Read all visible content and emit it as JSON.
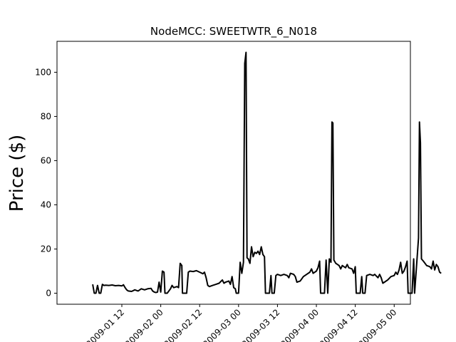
{
  "chart_data": {
    "type": "line",
    "title": "NodeMCC: SWEETWTR_6_N018",
    "xlabel": "",
    "ylabel": "Price ($)",
    "ylim": [
      -5,
      114
    ],
    "xlim_hours": [
      -8,
      101
    ],
    "y_ticks": [
      0,
      20,
      40,
      60,
      80,
      100
    ],
    "x_ticks": [
      {
        "label": "09-01 12",
        "hour": 12
      },
      {
        "label": "09-02 00",
        "hour": 24
      },
      {
        "label": "09-02 12",
        "hour": 36
      },
      {
        "label": "09-03 00",
        "hour": 48
      },
      {
        "label": "09-03 12",
        "hour": 60
      },
      {
        "label": "09-04 00",
        "hour": 72
      },
      {
        "label": "09-04 12",
        "hour": 84
      },
      {
        "label": "09-05 00",
        "hour": 96
      }
    ],
    "grid": false,
    "series": [
      {
        "color": "#000000",
        "points": [
          [
            3.0,
            4.0
          ],
          [
            3.5,
            0
          ],
          [
            4.0,
            0
          ],
          [
            4.5,
            3.5
          ],
          [
            5.0,
            0
          ],
          [
            5.5,
            0
          ],
          [
            6.0,
            4.0
          ],
          [
            6.5,
            3.5
          ],
          [
            7.0,
            3.6
          ],
          [
            8.0,
            3.5
          ],
          [
            9.0,
            3.7
          ],
          [
            10.0,
            3.4
          ],
          [
            11.0,
            3.5
          ],
          [
            12.0,
            3.3
          ],
          [
            12.5,
            3.8
          ],
          [
            13.0,
            2.5
          ],
          [
            13.5,
            1.5
          ],
          [
            14.0,
            1.0
          ],
          [
            15.0,
            0.8
          ],
          [
            16.0,
            1.5
          ],
          [
            17.0,
            1.0
          ],
          [
            18.0,
            2.0
          ],
          [
            19.0,
            1.5
          ],
          [
            20.0,
            2.0
          ],
          [
            21.0,
            2.2
          ],
          [
            21.5,
            1.0
          ],
          [
            22.0,
            0.5
          ],
          [
            22.5,
            0.3
          ],
          [
            23.0,
            0.5
          ],
          [
            23.5,
            5.0
          ],
          [
            24.0,
            0.5
          ],
          [
            24.5,
            10.0
          ],
          [
            25.0,
            9.5
          ],
          [
            25.3,
            0
          ],
          [
            26.0,
            0
          ],
          [
            27.0,
            2.0
          ],
          [
            27.5,
            3.5
          ],
          [
            28.0,
            2.5
          ],
          [
            29.0,
            3.0
          ],
          [
            29.5,
            2.5
          ],
          [
            30.0,
            13.5
          ],
          [
            30.5,
            12.5
          ],
          [
            30.7,
            0
          ],
          [
            32.0,
            0
          ],
          [
            32.5,
            9.5
          ],
          [
            33.0,
            10.0
          ],
          [
            34.0,
            9.8
          ],
          [
            35.0,
            10.2
          ],
          [
            36.0,
            9.5
          ],
          [
            37.0,
            8.8
          ],
          [
            37.5,
            9.5
          ],
          [
            38.0,
            7.0
          ],
          [
            38.5,
            3.5
          ],
          [
            39.0,
            3.0
          ],
          [
            40.0,
            3.5
          ],
          [
            41.0,
            4.0
          ],
          [
            42.0,
            4.5
          ],
          [
            43.0,
            6.0
          ],
          [
            43.5,
            4.5
          ],
          [
            44.0,
            5.0
          ],
          [
            45.0,
            5.5
          ],
          [
            45.5,
            4.0
          ],
          [
            46.0,
            7.5
          ],
          [
            46.5,
            2.5
          ],
          [
            47.0,
            2.0
          ],
          [
            47.3,
            0
          ],
          [
            48.0,
            0
          ],
          [
            48.5,
            14.0
          ],
          [
            49.0,
            9.0
          ],
          [
            49.5,
            14.0
          ],
          [
            49.9,
            104.0
          ],
          [
            50.3,
            109.0
          ],
          [
            50.6,
            16.0
          ],
          [
            51.0,
            15.5
          ],
          [
            51.5,
            13.5
          ],
          [
            52.0,
            21.0
          ],
          [
            52.5,
            16.5
          ],
          [
            53.0,
            18.5
          ],
          [
            53.5,
            18.0
          ],
          [
            54.0,
            19.0
          ],
          [
            54.5,
            17.5
          ],
          [
            55.0,
            21.0
          ],
          [
            55.5,
            17.5
          ],
          [
            56.0,
            16.5
          ],
          [
            56.3,
            0
          ],
          [
            57.5,
            0
          ],
          [
            58.0,
            8.0
          ],
          [
            58.3,
            0
          ],
          [
            59.0,
            0
          ],
          [
            59.5,
            8.0
          ],
          [
            60.0,
            8.5
          ],
          [
            61.0,
            8.0
          ],
          [
            62.0,
            8.5
          ],
          [
            63.0,
            8.0
          ],
          [
            63.5,
            7.0
          ],
          [
            64.0,
            9.0
          ],
          [
            65.0,
            8.5
          ],
          [
            65.5,
            7.5
          ],
          [
            66.0,
            5.0
          ],
          [
            67.0,
            5.5
          ],
          [
            68.0,
            7.5
          ],
          [
            69.0,
            8.5
          ],
          [
            70.0,
            9.5
          ],
          [
            70.5,
            11.0
          ],
          [
            71.0,
            9.0
          ],
          [
            72.0,
            10.0
          ],
          [
            72.5,
            11.5
          ],
          [
            73.0,
            14.5
          ],
          [
            73.3,
            0
          ],
          [
            74.5,
            0
          ],
          [
            75.0,
            15.0
          ],
          [
            75.5,
            0
          ],
          [
            76.0,
            15.5
          ],
          [
            76.5,
            14.0
          ],
          [
            76.8,
            77.5
          ],
          [
            77.1,
            77.0
          ],
          [
            77.4,
            15.0
          ],
          [
            78.0,
            13.5
          ],
          [
            79.0,
            12.5
          ],
          [
            79.5,
            11.0
          ],
          [
            80.0,
            12.5
          ],
          [
            81.0,
            11.5
          ],
          [
            81.5,
            13.0
          ],
          [
            82.0,
            11.5
          ],
          [
            83.0,
            11.0
          ],
          [
            83.5,
            9.0
          ],
          [
            84.0,
            12.0
          ],
          [
            84.3,
            0
          ],
          [
            85.5,
            0
          ],
          [
            86.0,
            7.5
          ],
          [
            86.3,
            0
          ],
          [
            87.0,
            0
          ],
          [
            87.5,
            8.0
          ],
          [
            88.5,
            8.5
          ],
          [
            89.5,
            8.0
          ],
          [
            90.0,
            8.5
          ],
          [
            91.0,
            7.0
          ],
          [
            91.5,
            8.5
          ],
          [
            92.0,
            7.0
          ],
          [
            92.5,
            4.5
          ],
          [
            93.0,
            5.0
          ],
          [
            94.0,
            6.0
          ],
          [
            95.0,
            7.5
          ],
          [
            96.0,
            8.0
          ],
          [
            96.5,
            9.5
          ],
          [
            97.0,
            8.5
          ],
          [
            97.5,
            10.5
          ],
          [
            98.0,
            14.0
          ],
          [
            98.5,
            9.0
          ],
          [
            99.0,
            10.0
          ],
          [
            99.5,
            12.0
          ],
          [
            100.0,
            14.5
          ],
          [
            100.3,
            0
          ],
          [
            101.5,
            0
          ],
          [
            102.0,
            15.5
          ],
          [
            102.3,
            0
          ],
          [
            103.0,
            14.5
          ],
          [
            103.5,
            25.0
          ],
          [
            103.8,
            77.5
          ],
          [
            104.1,
            68.0
          ],
          [
            104.4,
            15.5
          ],
          [
            105.0,
            14.5
          ],
          [
            106.0,
            12.5
          ],
          [
            107.0,
            12.0
          ],
          [
            107.5,
            11.0
          ],
          [
            108.0,
            14.5
          ],
          [
            108.5,
            10.5
          ],
          [
            109.0,
            13.0
          ],
          [
            109.5,
            12.0
          ],
          [
            110.0,
            9.5
          ],
          [
            110.5,
            9.0
          ]
        ]
      }
    ]
  }
}
